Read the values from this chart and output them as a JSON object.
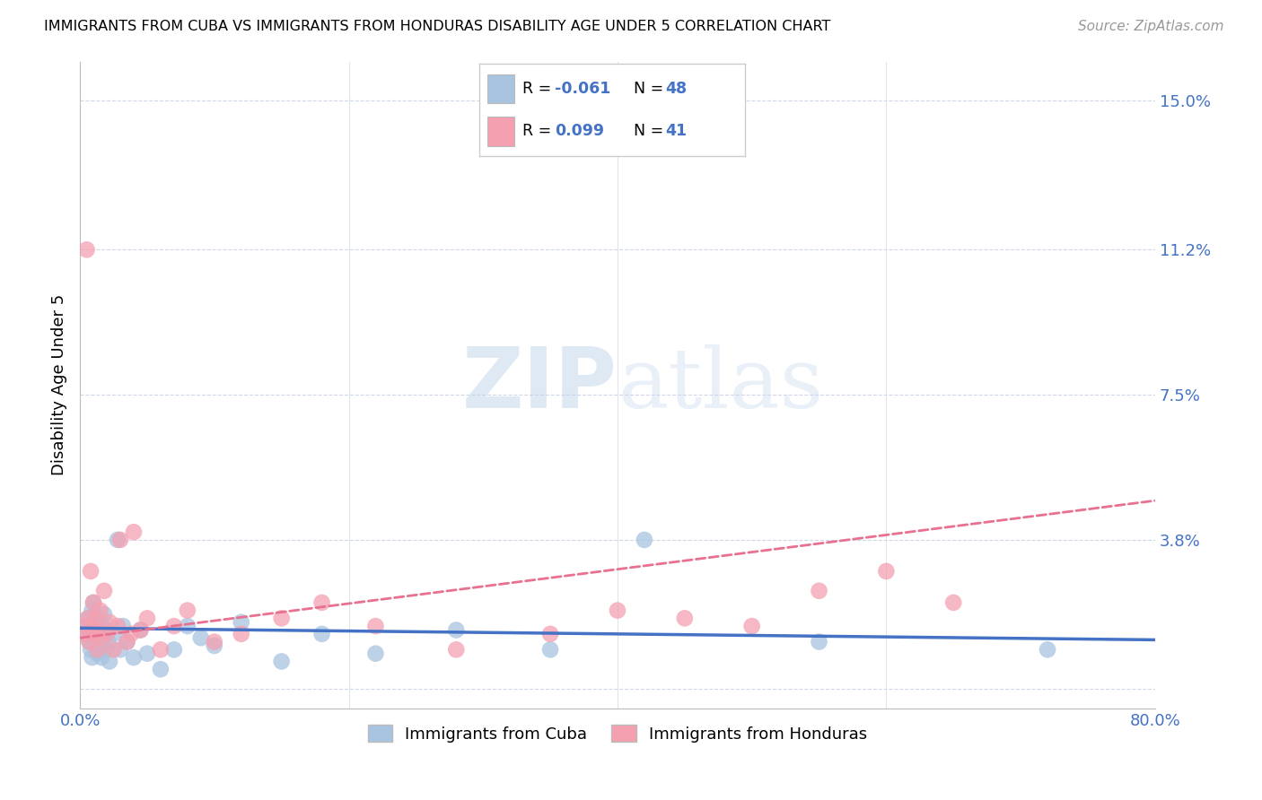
{
  "title": "IMMIGRANTS FROM CUBA VS IMMIGRANTS FROM HONDURAS DISABILITY AGE UNDER 5 CORRELATION CHART",
  "source": "Source: ZipAtlas.com",
  "ylabel": "Disability Age Under 5",
  "xlim": [
    0.0,
    0.8
  ],
  "ylim": [
    -0.005,
    0.16
  ],
  "yticks": [
    0.0,
    0.038,
    0.075,
    0.112,
    0.15
  ],
  "ytick_labels": [
    "",
    "3.8%",
    "7.5%",
    "11.2%",
    "15.0%"
  ],
  "xticks": [
    0.0,
    0.2,
    0.4,
    0.6,
    0.8
  ],
  "xtick_labels": [
    "0.0%",
    "",
    "",
    "",
    "80.0%"
  ],
  "grid_color": "#d0d8e8",
  "background_color": "#ffffff",
  "cuba_color": "#a8c4e0",
  "honduras_color": "#f4a0b0",
  "cuba_line_color": "#4472c4",
  "honduras_line_color": "#e87090",
  "cuba_R": -0.061,
  "cuba_N": 48,
  "honduras_R": 0.099,
  "honduras_N": 41,
  "watermark_zip": "ZIP",
  "watermark_atlas": "atlas",
  "cuba_x": [
    0.003,
    0.005,
    0.006,
    0.007,
    0.008,
    0.008,
    0.009,
    0.009,
    0.01,
    0.01,
    0.011,
    0.012,
    0.012,
    0.013,
    0.013,
    0.014,
    0.015,
    0.015,
    0.016,
    0.016,
    0.017,
    0.018,
    0.019,
    0.02,
    0.021,
    0.022,
    0.025,
    0.028,
    0.03,
    0.032,
    0.035,
    0.04,
    0.045,
    0.05,
    0.06,
    0.07,
    0.08,
    0.09,
    0.1,
    0.12,
    0.15,
    0.18,
    0.22,
    0.28,
    0.35,
    0.42,
    0.55,
    0.72
  ],
  "cuba_y": [
    0.016,
    0.014,
    0.018,
    0.012,
    0.015,
    0.01,
    0.02,
    0.008,
    0.016,
    0.022,
    0.013,
    0.011,
    0.018,
    0.015,
    0.009,
    0.014,
    0.017,
    0.012,
    0.016,
    0.008,
    0.013,
    0.019,
    0.01,
    0.015,
    0.012,
    0.007,
    0.014,
    0.038,
    0.01,
    0.016,
    0.012,
    0.008,
    0.015,
    0.009,
    0.005,
    0.01,
    0.016,
    0.013,
    0.011,
    0.017,
    0.007,
    0.014,
    0.009,
    0.015,
    0.01,
    0.038,
    0.012,
    0.01
  ],
  "honduras_x": [
    0.003,
    0.004,
    0.005,
    0.006,
    0.007,
    0.008,
    0.009,
    0.01,
    0.011,
    0.012,
    0.013,
    0.014,
    0.015,
    0.016,
    0.018,
    0.02,
    0.022,
    0.025,
    0.028,
    0.03,
    0.035,
    0.038,
    0.04,
    0.045,
    0.05,
    0.06,
    0.07,
    0.08,
    0.1,
    0.12,
    0.15,
    0.18,
    0.22,
    0.28,
    0.35,
    0.4,
    0.45,
    0.5,
    0.55,
    0.6,
    0.65
  ],
  "honduras_y": [
    0.016,
    0.014,
    0.112,
    0.018,
    0.012,
    0.03,
    0.016,
    0.022,
    0.014,
    0.018,
    0.01,
    0.015,
    0.02,
    0.013,
    0.025,
    0.014,
    0.017,
    0.01,
    0.016,
    0.038,
    0.012,
    0.014,
    0.04,
    0.015,
    0.018,
    0.01,
    0.016,
    0.02,
    0.012,
    0.014,
    0.018,
    0.022,
    0.016,
    0.01,
    0.014,
    0.02,
    0.018,
    0.016,
    0.025,
    0.03,
    0.022
  ],
  "cuba_line_y0": 0.0155,
  "cuba_line_y1": 0.0125,
  "honduras_line_y0": 0.013,
  "honduras_line_y1": 0.048
}
